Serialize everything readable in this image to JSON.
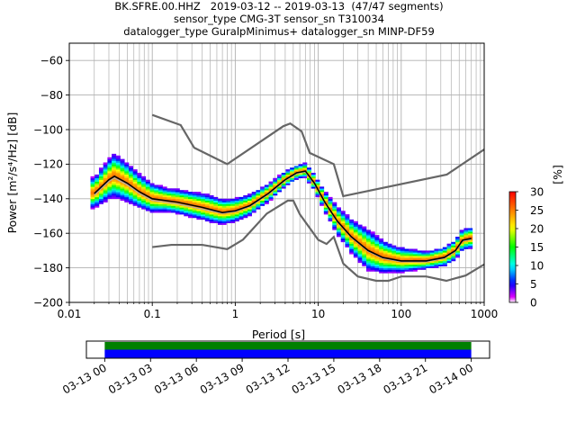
{
  "title_lines": [
    "BK.SFRE.00.HHZ   2019-03-12 -- 2019-03-13  (47/47 segments)",
    "sensor_type CMG-3T sensor_sn T310034",
    "datalogger_type GuralpMinimus+ datalogger_sn MINP-DF59"
  ],
  "chart_data": {
    "type": "heatmap",
    "description_kind": "probabilistic power spectral density",
    "xlabel": "Period [s]",
    "ylabel": "Power [m²/s⁴/Hz] [dB]",
    "x_scale": "log",
    "xlim": [
      0.01,
      1000
    ],
    "ylim": [
      -200,
      -50
    ],
    "x_ticks": [
      0.01,
      0.1,
      1,
      10,
      100,
      1000
    ],
    "x_tick_labels": [
      "0.01",
      "0.1",
      "1",
      "10",
      "100",
      "1000"
    ],
    "y_ticks": [
      -200,
      -180,
      -160,
      -140,
      -120,
      -100,
      -80,
      -60
    ],
    "y_tick_labels": [
      "−200",
      "−180",
      "−160",
      "−140",
      "−120",
      "−100",
      "−80",
      "−60"
    ],
    "grid": true,
    "colorbar": {
      "label": "[%]",
      "range": [
        0,
        30
      ],
      "ticks": [
        0,
        5,
        10,
        15,
        20,
        25,
        30
      ],
      "colormap": "pqlx"
    },
    "new_high_noise_model": [
      [
        0.1,
        -91.5
      ],
      [
        0.22,
        -97.4
      ],
      [
        0.32,
        -110.5
      ],
      [
        0.8,
        -120
      ],
      [
        3.8,
        -98
      ],
      [
        4.6,
        -96.5
      ],
      [
        6.3,
        -101
      ],
      [
        7.9,
        -113.5
      ],
      [
        15.4,
        -120
      ],
      [
        20,
        -138.5
      ],
      [
        354.8,
        -126
      ],
      [
        1000,
        -111.5
      ]
    ],
    "new_low_noise_model": [
      [
        0.1,
        -168
      ],
      [
        0.17,
        -166.7
      ],
      [
        0.4,
        -166.7
      ],
      [
        0.8,
        -169.2
      ],
      [
        1.24,
        -163.7
      ],
      [
        2.4,
        -148.6
      ],
      [
        4.3,
        -141.1
      ],
      [
        5.0,
        -141.1
      ],
      [
        6.0,
        -149
      ],
      [
        10.0,
        -163.8
      ],
      [
        12.6,
        -166.2
      ],
      [
        15.4,
        -162.1
      ],
      [
        20,
        -177.5
      ],
      [
        30,
        -185
      ],
      [
        50,
        -187.5
      ],
      [
        70,
        -187.5
      ],
      [
        100,
        -185
      ],
      [
        200,
        -185
      ],
      [
        350,
        -187.5
      ],
      [
        600,
        -184.4
      ],
      [
        1000,
        -178
      ]
    ],
    "median_curve": [
      [
        0.02,
        -137
      ],
      [
        0.03,
        -129
      ],
      [
        0.035,
        -127
      ],
      [
        0.05,
        -131
      ],
      [
        0.07,
        -136
      ],
      [
        0.1,
        -140
      ],
      [
        0.2,
        -142
      ],
      [
        0.4,
        -145
      ],
      [
        0.7,
        -148
      ],
      [
        1.0,
        -147
      ],
      [
        1.5,
        -144
      ],
      [
        2.5,
        -137
      ],
      [
        4.0,
        -129
      ],
      [
        5.5,
        -125
      ],
      [
        7.0,
        -124
      ],
      [
        9.0,
        -131
      ],
      [
        12.0,
        -142
      ],
      [
        17.0,
        -153
      ],
      [
        25.0,
        -162
      ],
      [
        40.0,
        -170
      ],
      [
        60.0,
        -174
      ],
      [
        100.0,
        -176
      ],
      [
        200.0,
        -176
      ],
      [
        330.0,
        -174
      ],
      [
        450.0,
        -170
      ],
      [
        550.0,
        -164
      ],
      [
        700.0,
        -163
      ]
    ],
    "mode_curve": [
      [
        0.02,
        -138
      ],
      [
        0.03,
        -130
      ],
      [
        0.035,
        -128
      ],
      [
        0.05,
        -132
      ],
      [
        0.07,
        -137
      ],
      [
        0.1,
        -141
      ],
      [
        0.2,
        -143
      ],
      [
        0.4,
        -146
      ],
      [
        0.7,
        -148.5
      ],
      [
        1.0,
        -147.5
      ],
      [
        1.5,
        -144.5
      ],
      [
        2.5,
        -137.5
      ],
      [
        4.0,
        -129.5
      ],
      [
        5.5,
        -125.5
      ],
      [
        7.0,
        -124.5
      ],
      [
        9.0,
        -131.5
      ],
      [
        12.0,
        -142.5
      ],
      [
        17.0,
        -153.5
      ],
      [
        25.0,
        -162.5
      ],
      [
        40.0,
        -170.5
      ],
      [
        60.0,
        -174.5
      ],
      [
        100.0,
        -176.5
      ],
      [
        200.0,
        -176.5
      ],
      [
        330.0,
        -174.5
      ],
      [
        450.0,
        -170.5
      ],
      [
        550.0,
        -164.5
      ],
      [
        700.0,
        -163.5
      ]
    ],
    "band_spread_db": [
      [
        0.02,
        9
      ],
      [
        0.035,
        13
      ],
      [
        0.07,
        10
      ],
      [
        0.15,
        7
      ],
      [
        0.5,
        8
      ],
      [
        1.0,
        7
      ],
      [
        3.0,
        5
      ],
      [
        6.0,
        4
      ],
      [
        10.0,
        5
      ],
      [
        20.0,
        9
      ],
      [
        40.0,
        12
      ],
      [
        80.0,
        8
      ],
      [
        200.0,
        5
      ],
      [
        600.0,
        6
      ],
      [
        1000,
        6
      ]
    ],
    "timeline": {
      "tick_labels": [
        "03-13 00",
        "03-13 03",
        "03-13 06",
        "03-13 09",
        "03-13 12",
        "03-13 15",
        "03-13 18",
        "03-13 21",
        "03-14 00"
      ],
      "tick_hours": [
        0,
        3,
        6,
        9,
        12,
        15,
        18,
        21,
        24
      ],
      "range_hours": [
        -1.2,
        25.2
      ],
      "data_coverage_hours": [
        0,
        24
      ],
      "gap_coverage_hours": [
        0,
        24
      ],
      "coverage_colors": {
        "data": "#0000ff",
        "gaps": "#008000"
      }
    }
  }
}
